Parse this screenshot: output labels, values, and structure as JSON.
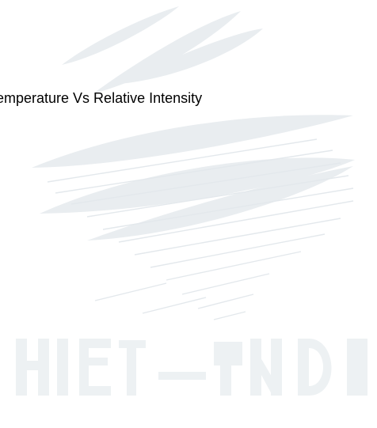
{
  "caption": {
    "text": "Temperature Vs Relative Intensity"
  },
  "watermark": {
    "kind": "faint-logo-watermark",
    "color": "#e6ebee"
  }
}
